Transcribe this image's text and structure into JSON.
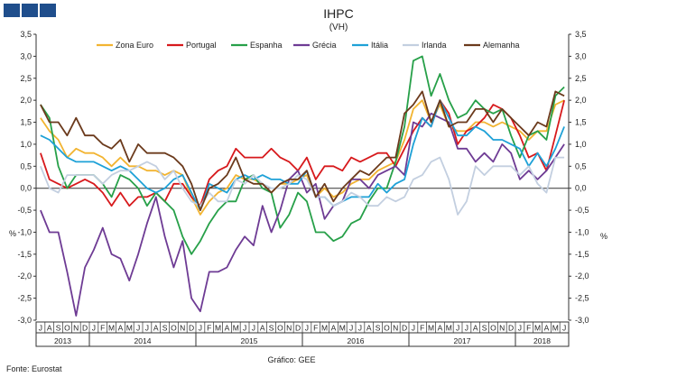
{
  "header": {
    "logo": "logo-squares"
  },
  "chart_data": {
    "type": "line",
    "title": "IHPC",
    "subtitle": "(VH)",
    "ylabel_left": "%",
    "ylabel_right": "%",
    "ylim": [
      -3.0,
      3.5
    ],
    "yticks": [
      "3,5",
      "3,0",
      "2,5",
      "2,0",
      "1,5",
      "1,0",
      "0,5",
      "0,0",
      "-0,5",
      "-1,0",
      "-1,5",
      "-2,0",
      "-2,5",
      "-3,0"
    ],
    "legend_position": "top",
    "grid": false,
    "month_labels": [
      "J",
      "A",
      "S",
      "O",
      "N",
      "D",
      "J",
      "F",
      "M",
      "A",
      "M",
      "J",
      "J",
      "A",
      "S",
      "O",
      "N",
      "D",
      "J",
      "F",
      "M",
      "A",
      "M",
      "J",
      "J",
      "A",
      "S",
      "O",
      "N",
      "D",
      "J",
      "F",
      "M",
      "A",
      "M",
      "J",
      "J",
      "A",
      "S",
      "O",
      "N",
      "D",
      "J",
      "F",
      "M",
      "A",
      "M",
      "J",
      "J",
      "A",
      "S",
      "O",
      "N",
      "D",
      "J",
      "F",
      "M",
      "A",
      "M",
      "J"
    ],
    "year_labels": [
      "2013",
      "2014",
      "2015",
      "2016",
      "2017",
      "2018"
    ],
    "year_spans": [
      [
        0,
        6
      ],
      [
        6,
        18
      ],
      [
        18,
        30
      ],
      [
        30,
        42
      ],
      [
        42,
        54
      ],
      [
        54,
        60
      ]
    ],
    "series": [
      {
        "name": "Zona Euro",
        "color": "#f2b431",
        "values": [
          1.6,
          1.3,
          1.1,
          0.7,
          0.9,
          0.8,
          0.8,
          0.7,
          0.5,
          0.7,
          0.5,
          0.5,
          0.4,
          0.4,
          0.3,
          0.4,
          0.3,
          -0.2,
          -0.6,
          -0.3,
          -0.1,
          0.0,
          0.3,
          0.2,
          0.2,
          0.1,
          -0.1,
          0.1,
          0.1,
          0.2,
          0.3,
          -0.2,
          0.0,
          -0.2,
          -0.1,
          0.1,
          0.2,
          0.2,
          0.4,
          0.5,
          0.6,
          1.1,
          1.8,
          2.0,
          1.5,
          1.9,
          1.4,
          1.3,
          1.3,
          1.5,
          1.5,
          1.4,
          1.5,
          1.4,
          1.3,
          1.1,
          1.3,
          1.3,
          1.9,
          2.0
        ]
      },
      {
        "name": "Portugal",
        "color": "#d7191c",
        "values": [
          0.8,
          0.2,
          0.1,
          0.0,
          0.1,
          0.2,
          0.1,
          -0.1,
          -0.4,
          -0.1,
          -0.4,
          -0.2,
          -0.2,
          -0.1,
          -0.3,
          0.1,
          0.1,
          -0.2,
          -0.4,
          0.2,
          0.4,
          0.5,
          0.9,
          0.7,
          0.7,
          0.7,
          0.9,
          0.7,
          0.6,
          0.4,
          0.7,
          0.2,
          0.5,
          0.5,
          0.4,
          0.7,
          0.6,
          0.7,
          0.8,
          0.8,
          0.5,
          0.9,
          1.3,
          1.6,
          1.4,
          2.0,
          1.7,
          1.0,
          1.3,
          1.4,
          1.6,
          1.9,
          1.8,
          1.6,
          1.2,
          0.7,
          0.8,
          0.4,
          1.2,
          2.0
        ]
      },
      {
        "name": "Espanha",
        "color": "#27a049",
        "values": [
          1.9,
          1.6,
          0.5,
          0.0,
          0.3,
          0.3,
          0.3,
          0.1,
          -0.2,
          0.3,
          0.2,
          0.0,
          -0.4,
          -0.1,
          -0.3,
          -0.5,
          -1.1,
          -1.5,
          -1.2,
          -0.8,
          -0.5,
          -0.3,
          -0.3,
          0.2,
          0.3,
          0.0,
          -0.1,
          -0.9,
          -0.6,
          -0.1,
          -0.3,
          -1.0,
          -1.0,
          -1.2,
          -1.1,
          -0.8,
          -0.7,
          -0.3,
          0.0,
          0.0,
          0.6,
          1.4,
          2.9,
          3.0,
          2.1,
          2.6,
          2.0,
          1.6,
          1.7,
          2.0,
          1.8,
          1.7,
          1.8,
          1.2,
          0.7,
          1.2,
          1.3,
          1.1,
          2.1,
          2.3
        ]
      },
      {
        "name": "Grécia",
        "color": "#6e3b94",
        "values": [
          -0.5,
          -1.0,
          -1.0,
          -1.9,
          -2.9,
          -1.8,
          -1.4,
          -0.9,
          -1.5,
          -1.6,
          -2.1,
          -1.5,
          -0.8,
          -0.2,
          -1.1,
          -1.8,
          -1.2,
          -2.5,
          -2.8,
          -1.9,
          -1.9,
          -1.8,
          -1.4,
          -1.1,
          -1.3,
          -0.4,
          -1.0,
          -0.5,
          0.2,
          0.4,
          -0.1,
          0.1,
          -0.7,
          -0.4,
          -0.3,
          0.2,
          0.2,
          0.0,
          0.3,
          0.4,
          0.5,
          0.3,
          1.5,
          1.4,
          1.7,
          1.6,
          1.5,
          0.9,
          0.9,
          0.6,
          0.8,
          0.6,
          1.0,
          0.8,
          0.2,
          0.4,
          0.2,
          0.4,
          0.7,
          1.0
        ]
      },
      {
        "name": "Itália",
        "color": "#1ea1d7",
        "values": [
          1.2,
          1.1,
          0.9,
          0.7,
          0.6,
          0.6,
          0.6,
          0.5,
          0.4,
          0.5,
          0.4,
          0.2,
          0.0,
          -0.1,
          0.0,
          0.2,
          0.3,
          -0.1,
          -0.5,
          0.1,
          0.0,
          -0.1,
          0.2,
          0.3,
          0.2,
          0.3,
          0.2,
          0.2,
          0.1,
          0.1,
          0.4,
          -0.2,
          -0.2,
          -0.4,
          -0.3,
          -0.2,
          -0.2,
          -0.2,
          0.1,
          -0.1,
          0.1,
          0.2,
          1.0,
          1.6,
          1.4,
          2.0,
          1.6,
          1.2,
          1.2,
          1.4,
          1.3,
          1.1,
          1.1,
          1.0,
          0.9,
          0.5,
          0.8,
          0.5,
          0.9,
          1.4
        ]
      },
      {
        "name": "Irlanda",
        "color": "#c3cfe0",
        "values": [
          0.5,
          0.0,
          -0.1,
          0.3,
          0.3,
          0.3,
          0.3,
          0.1,
          0.3,
          0.4,
          0.4,
          0.5,
          0.6,
          0.5,
          0.2,
          0.4,
          0.0,
          -0.3,
          -0.4,
          -0.1,
          -0.3,
          -0.3,
          0.2,
          0.1,
          0.3,
          0.1,
          0.0,
          0.0,
          0.1,
          0.3,
          0.2,
          -0.2,
          -0.2,
          -0.4,
          -0.3,
          -0.1,
          -0.2,
          -0.4,
          -0.4,
          -0.2,
          -0.3,
          -0.2,
          0.2,
          0.3,
          0.6,
          0.7,
          0.2,
          -0.6,
          -0.3,
          0.5,
          0.3,
          0.5,
          0.5,
          0.5,
          0.3,
          0.5,
          0.1,
          -0.1,
          0.7,
          0.7
        ]
      },
      {
        "name": "Alemanha",
        "color": "#6b3a1c",
        "values": [
          1.9,
          1.5,
          1.5,
          1.2,
          1.6,
          1.2,
          1.2,
          1.0,
          0.9,
          1.1,
          0.6,
          1.0,
          0.8,
          0.8,
          0.8,
          0.7,
          0.5,
          0.1,
          -0.5,
          0.0,
          0.1,
          0.3,
          0.7,
          0.2,
          0.1,
          0.1,
          -0.1,
          0.1,
          0.2,
          0.2,
          0.4,
          -0.2,
          0.1,
          -0.3,
          0.0,
          0.2,
          0.4,
          0.3,
          0.5,
          0.7,
          0.7,
          1.7,
          1.9,
          2.2,
          1.5,
          2.0,
          1.4,
          1.5,
          1.5,
          1.8,
          1.8,
          1.5,
          1.8,
          1.6,
          1.4,
          1.2,
          1.5,
          1.4,
          2.2,
          2.1
        ]
      }
    ]
  },
  "footer": {
    "source": "Fonte: Eurostat",
    "credit": "Gráfico: GEE"
  }
}
